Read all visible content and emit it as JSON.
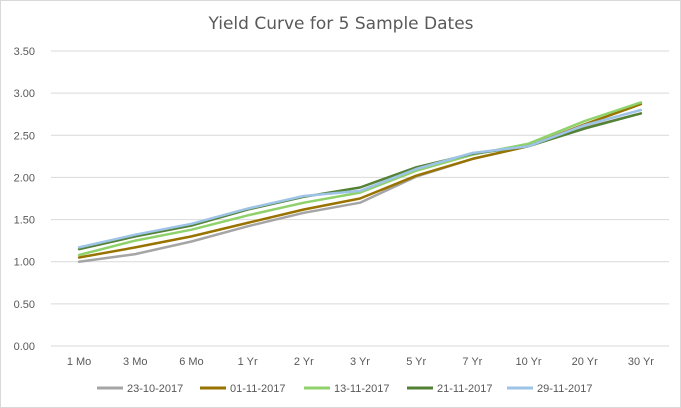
{
  "chart_data": {
    "type": "line",
    "title": "Yield Curve for 5 Sample Dates",
    "xlabel": "",
    "ylabel": "",
    "categories": [
      "1 Mo",
      "3 Mo",
      "6 Mo",
      "1 Yr",
      "2 Yr",
      "3 Yr",
      "5 Yr",
      "7 Yr",
      "10 Yr",
      "20 Yr",
      "30 Yr"
    ],
    "ylim": [
      0,
      3.5
    ],
    "yticks": [
      "0.00",
      "0.50",
      "1.00",
      "1.50",
      "2.00",
      "2.50",
      "3.00",
      "3.50"
    ],
    "grid": true,
    "legend_position": "bottom",
    "series": [
      {
        "name": "23-10-2017",
        "color": "#a5a5a5",
        "values": [
          1.0,
          1.09,
          1.24,
          1.42,
          1.58,
          1.7,
          2.01,
          2.22,
          2.37,
          2.59,
          2.76
        ]
      },
      {
        "name": "01-11-2017",
        "color": "#997300",
        "values": [
          1.05,
          1.17,
          1.3,
          1.46,
          1.62,
          1.75,
          2.02,
          2.22,
          2.37,
          2.63,
          2.87
        ]
      },
      {
        "name": "13-11-2017",
        "color": "#8fd16a",
        "values": [
          1.08,
          1.25,
          1.38,
          1.55,
          1.7,
          1.82,
          2.08,
          2.27,
          2.4,
          2.67,
          2.89
        ]
      },
      {
        "name": "21-11-2017",
        "color": "#548235",
        "values": [
          1.15,
          1.3,
          1.43,
          1.62,
          1.77,
          1.88,
          2.12,
          2.28,
          2.37,
          2.58,
          2.76
        ]
      },
      {
        "name": "29-11-2017",
        "color": "#9dc3e6",
        "values": [
          1.17,
          1.32,
          1.45,
          1.63,
          1.78,
          1.84,
          2.1,
          2.29,
          2.37,
          2.62,
          2.8
        ]
      }
    ]
  }
}
